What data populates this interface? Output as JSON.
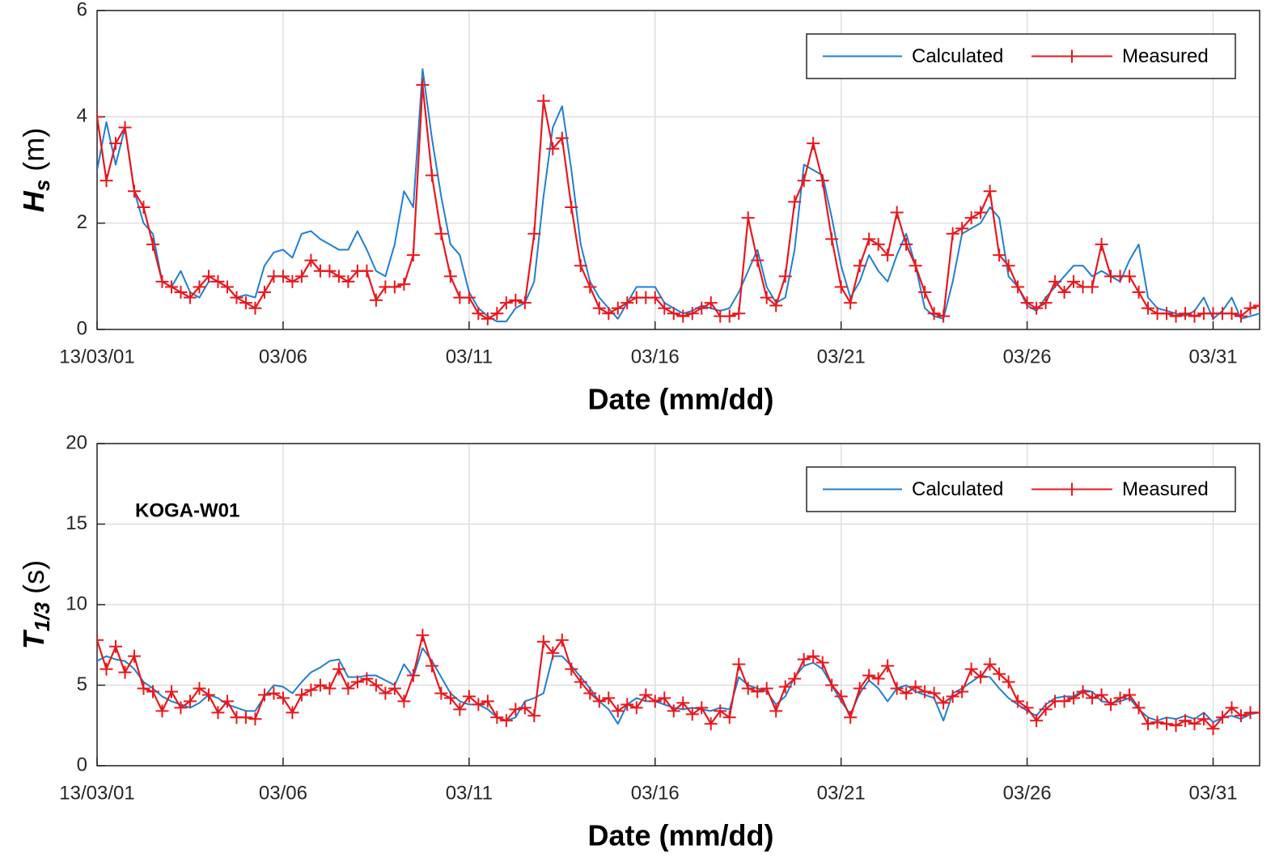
{
  "chart_data": [
    {
      "type": "line",
      "xlabel": "Date (mm/dd)",
      "ylabel": {
        "symbol": "H",
        "subscript": "s",
        "unit": "(m)"
      },
      "legend": "upper right",
      "grid": true,
      "xlim": [
        1,
        32.25
      ],
      "ylim": [
        0,
        6
      ],
      "xticks": [
        {
          "value": 1,
          "label": "13/03/01"
        },
        {
          "value": 6,
          "label": "03/06"
        },
        {
          "value": 11,
          "label": "03/11"
        },
        {
          "value": 16,
          "label": "03/16"
        },
        {
          "value": 21,
          "label": "03/21"
        },
        {
          "value": 26,
          "label": "03/26"
        },
        {
          "value": 31,
          "label": "03/31"
        }
      ],
      "yticks": [
        0,
        2,
        4,
        6
      ],
      "x": [
        1,
        1.25,
        1.5,
        1.75,
        2,
        2.25,
        2.5,
        2.75,
        3,
        3.25,
        3.5,
        3.75,
        4,
        4.25,
        4.5,
        4.75,
        5,
        5.25,
        5.5,
        5.75,
        6,
        6.25,
        6.5,
        6.75,
        7,
        7.25,
        7.5,
        7.75,
        8,
        8.25,
        8.5,
        8.75,
        9,
        9.25,
        9.5,
        9.75,
        10,
        10.25,
        10.5,
        10.75,
        11,
        11.25,
        11.5,
        11.75,
        12,
        12.25,
        12.5,
        12.75,
        13,
        13.25,
        13.5,
        13.75,
        14,
        14.25,
        14.5,
        14.75,
        15,
        15.25,
        15.5,
        15.75,
        16,
        16.25,
        16.5,
        16.75,
        17,
        17.25,
        17.5,
        17.75,
        18,
        18.25,
        18.5,
        18.75,
        19,
        19.25,
        19.5,
        19.75,
        20,
        20.25,
        20.5,
        20.75,
        21,
        21.25,
        21.5,
        21.75,
        22,
        22.25,
        22.5,
        22.75,
        23,
        23.25,
        23.5,
        23.75,
        24,
        24.25,
        24.5,
        24.75,
        25,
        25.25,
        25.5,
        25.75,
        26,
        26.25,
        26.5,
        26.75,
        27,
        27.25,
        27.5,
        27.75,
        28,
        28.25,
        28.5,
        28.75,
        29,
        29.25,
        29.5,
        29.75,
        30,
        30.25,
        30.5,
        30.75,
        31,
        31.25,
        31.5,
        31.75,
        32,
        32.25
      ],
      "series": [
        {
          "name": "Calculated",
          "color": "#1f7fd0",
          "values": [
            3.0,
            3.9,
            3.1,
            3.8,
            2.6,
            2.0,
            1.8,
            0.9,
            0.8,
            1.1,
            0.7,
            0.6,
            0.9,
            0.9,
            0.8,
            0.6,
            0.65,
            0.6,
            1.2,
            1.45,
            1.5,
            1.35,
            1.8,
            1.85,
            1.7,
            1.6,
            1.5,
            1.5,
            1.85,
            1.5,
            1.1,
            1.0,
            1.6,
            2.6,
            2.3,
            4.9,
            3.6,
            2.5,
            1.6,
            1.4,
            0.7,
            0.4,
            0.25,
            0.15,
            0.15,
            0.4,
            0.5,
            0.9,
            2.5,
            3.8,
            4.2,
            3.0,
            1.6,
            0.9,
            0.6,
            0.4,
            0.2,
            0.5,
            0.8,
            0.8,
            0.8,
            0.5,
            0.4,
            0.3,
            0.35,
            0.45,
            0.4,
            0.35,
            0.4,
            0.7,
            1.1,
            1.5,
            0.8,
            0.5,
            0.6,
            1.5,
            3.1,
            3.0,
            2.9,
            2.1,
            1.2,
            0.6,
            0.9,
            1.4,
            1.1,
            0.9,
            1.4,
            1.8,
            1.2,
            0.4,
            0.25,
            0.2,
            0.9,
            1.8,
            1.9,
            2.0,
            2.3,
            2.1,
            1.0,
            0.8,
            0.45,
            0.35,
            0.6,
            0.8,
            1.0,
            1.2,
            1.2,
            1.0,
            1.1,
            1.0,
            0.9,
            1.3,
            1.6,
            0.6,
            0.4,
            0.35,
            0.3,
            0.25,
            0.35,
            0.6,
            0.2,
            0.35,
            0.6,
            0.2,
            0.25,
            0.3
          ]
        },
        {
          "name": "Measured",
          "color": "#e8171d",
          "marker": "+",
          "values": [
            4.0,
            2.8,
            3.5,
            3.8,
            2.6,
            2.3,
            1.6,
            0.9,
            0.8,
            0.7,
            0.6,
            0.8,
            1.0,
            0.9,
            0.8,
            0.6,
            0.5,
            0.4,
            0.7,
            1.0,
            1.0,
            0.9,
            1.0,
            1.3,
            1.1,
            1.1,
            1.0,
            0.9,
            1.1,
            1.1,
            0.55,
            0.8,
            0.8,
            0.85,
            1.4,
            4.6,
            2.9,
            1.8,
            1.0,
            0.6,
            0.6,
            0.3,
            0.2,
            0.3,
            0.5,
            0.55,
            0.5,
            1.8,
            4.3,
            3.4,
            3.6,
            2.3,
            1.2,
            0.8,
            0.4,
            0.3,
            0.4,
            0.5,
            0.6,
            0.6,
            0.6,
            0.4,
            0.3,
            0.25,
            0.3,
            0.4,
            0.5,
            0.25,
            0.25,
            0.3,
            2.1,
            1.3,
            0.6,
            0.45,
            1.0,
            2.4,
            2.8,
            3.5,
            2.8,
            1.7,
            0.8,
            0.5,
            1.2,
            1.7,
            1.6,
            1.4,
            2.2,
            1.6,
            1.2,
            0.7,
            0.3,
            0.25,
            1.8,
            1.9,
            2.1,
            2.2,
            2.6,
            1.4,
            1.2,
            0.8,
            0.5,
            0.4,
            0.5,
            0.9,
            0.7,
            0.9,
            0.8,
            0.8,
            1.6,
            1.0,
            1.0,
            1.0,
            0.7,
            0.4,
            0.3,
            0.3,
            0.25,
            0.3,
            0.25,
            0.3,
            0.3,
            0.3,
            0.3,
            0.25,
            0.4,
            0.45
          ]
        }
      ]
    },
    {
      "type": "line",
      "xlabel": "Date (mm/dd)",
      "ylabel": {
        "symbol": "T",
        "subscript": "1/3",
        "unit": "(s)"
      },
      "annotation": "KOGA-W01",
      "legend": "upper right",
      "grid": true,
      "xlim": [
        1,
        32.25
      ],
      "ylim": [
        0,
        20
      ],
      "xticks": [
        {
          "value": 1,
          "label": "13/03/01"
        },
        {
          "value": 6,
          "label": "03/06"
        },
        {
          "value": 11,
          "label": "03/11"
        },
        {
          "value": 16,
          "label": "03/16"
        },
        {
          "value": 21,
          "label": "03/21"
        },
        {
          "value": 26,
          "label": "03/26"
        },
        {
          "value": 31,
          "label": "03/31"
        }
      ],
      "yticks": [
        0,
        5,
        10,
        15,
        20
      ],
      "x": [
        1,
        1.25,
        1.5,
        1.75,
        2,
        2.25,
        2.5,
        2.75,
        3,
        3.25,
        3.5,
        3.75,
        4,
        4.25,
        4.5,
        4.75,
        5,
        5.25,
        5.5,
        5.75,
        6,
        6.25,
        6.5,
        6.75,
        7,
        7.25,
        7.5,
        7.75,
        8,
        8.25,
        8.5,
        8.75,
        9,
        9.25,
        9.5,
        9.75,
        10,
        10.25,
        10.5,
        10.75,
        11,
        11.25,
        11.5,
        11.75,
        12,
        12.25,
        12.5,
        12.75,
        13,
        13.25,
        13.5,
        13.75,
        14,
        14.25,
        14.5,
        14.75,
        15,
        15.25,
        15.5,
        15.75,
        16,
        16.25,
        16.5,
        16.75,
        17,
        17.25,
        17.5,
        17.75,
        18,
        18.25,
        18.5,
        18.75,
        19,
        19.25,
        19.5,
        19.75,
        20,
        20.25,
        20.5,
        20.75,
        21,
        21.25,
        21.5,
        21.75,
        22,
        22.25,
        22.5,
        22.75,
        23,
        23.25,
        23.5,
        23.75,
        24,
        24.25,
        24.5,
        24.75,
        25,
        25.25,
        25.5,
        25.75,
        26,
        26.25,
        26.5,
        26.75,
        27,
        27.25,
        27.5,
        27.75,
        28,
        28.25,
        28.5,
        28.75,
        29,
        29.25,
        29.5,
        29.75,
        30,
        30.25,
        30.5,
        30.75,
        31,
        31.25,
        31.5,
        31.75,
        32,
        32.25
      ],
      "series": [
        {
          "name": "Calculated",
          "color": "#1f7fd0",
          "values": [
            6.5,
            6.8,
            6.6,
            6.5,
            6.0,
            5.2,
            4.8,
            4.3,
            4.0,
            3.8,
            3.6,
            3.9,
            4.4,
            4.2,
            3.8,
            3.6,
            3.4,
            3.4,
            4.3,
            5.0,
            4.9,
            4.5,
            5.2,
            5.8,
            6.1,
            6.5,
            6.6,
            5.5,
            5.5,
            5.6,
            5.6,
            5.3,
            5.0,
            6.3,
            5.5,
            7.3,
            6.5,
            5.5,
            4.5,
            4.0,
            3.8,
            3.8,
            3.5,
            3.0,
            2.8,
            3.0,
            4.0,
            4.2,
            4.5,
            6.8,
            6.8,
            6.2,
            5.5,
            4.8,
            4.0,
            3.5,
            2.6,
            3.8,
            4.2,
            4.0,
            4.0,
            3.8,
            3.6,
            3.5,
            3.6,
            3.5,
            3.4,
            3.6,
            3.5,
            5.5,
            5.0,
            4.8,
            4.6,
            3.8,
            4.3,
            5.5,
            6.2,
            6.4,
            6.0,
            5.0,
            4.0,
            3.2,
            4.5,
            5.3,
            4.8,
            4.0,
            4.8,
            5.0,
            4.6,
            4.4,
            4.2,
            2.8,
            4.5,
            4.8,
            5.2,
            5.6,
            5.5,
            4.8,
            4.2,
            3.8,
            3.4,
            3.1,
            3.8,
            4.2,
            4.3,
            4.3,
            4.7,
            4.6,
            4.0,
            3.9,
            4.0,
            4.2,
            3.5,
            3.0,
            2.8,
            3.0,
            2.9,
            3.1,
            2.9,
            3.3,
            2.7,
            3.0,
            3.1,
            2.9,
            3.2,
            3.3
          ]
        },
        {
          "name": "Measured",
          "color": "#e8171d",
          "marker": "+",
          "values": [
            7.8,
            6.0,
            7.4,
            5.8,
            6.8,
            4.8,
            4.6,
            3.4,
            4.6,
            3.6,
            4.0,
            4.8,
            4.4,
            3.3,
            4.0,
            3.0,
            3.0,
            2.9,
            4.4,
            4.5,
            4.2,
            3.3,
            4.4,
            4.7,
            5.0,
            4.8,
            6.0,
            4.8,
            5.2,
            5.4,
            5.0,
            4.5,
            4.8,
            4.0,
            5.6,
            8.1,
            6.2,
            4.5,
            4.2,
            3.5,
            4.3,
            3.8,
            4.0,
            3.0,
            2.8,
            3.5,
            3.6,
            3.1,
            7.7,
            7.0,
            7.8,
            6.0,
            5.2,
            4.5,
            4.0,
            4.2,
            3.4,
            3.8,
            3.6,
            4.4,
            4.0,
            4.2,
            3.4,
            3.9,
            3.2,
            3.6,
            2.6,
            3.4,
            3.0,
            6.3,
            4.8,
            4.6,
            4.8,
            3.4,
            4.9,
            5.4,
            6.6,
            6.8,
            6.4,
            5.0,
            4.3,
            3.0,
            4.8,
            5.6,
            5.4,
            6.2,
            4.8,
            4.5,
            4.9,
            4.6,
            4.5,
            3.9,
            4.3,
            4.6,
            6.0,
            5.5,
            6.3,
            5.7,
            5.2,
            4.0,
            3.6,
            2.8,
            3.5,
            4.0,
            4.0,
            4.2,
            4.6,
            4.2,
            4.4,
            3.8,
            4.2,
            4.4,
            3.6,
            2.6,
            2.7,
            2.6,
            2.5,
            2.8,
            2.6,
            2.9,
            2.3,
            3.0,
            3.6,
            3.1,
            3.3,
            3.3
          ]
        }
      ]
    }
  ]
}
